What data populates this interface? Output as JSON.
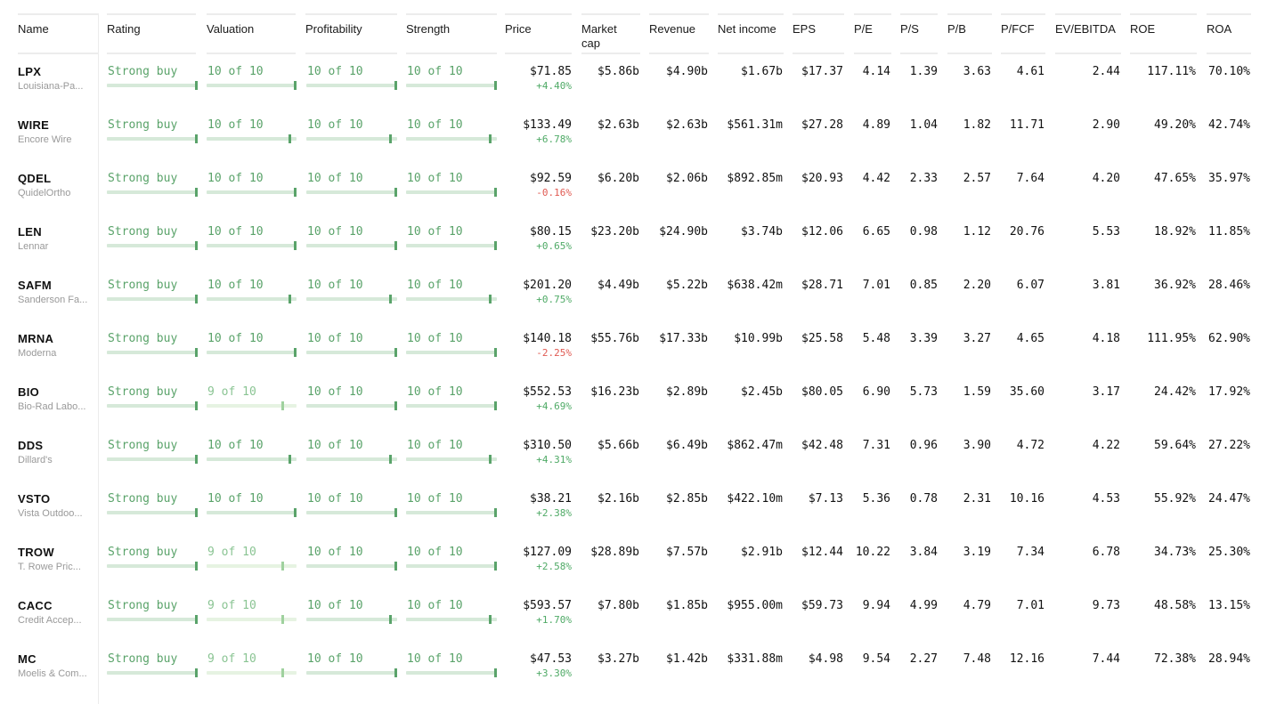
{
  "columns": {
    "name": "Name",
    "rating": "Rating",
    "valuation": "Valuation",
    "profitability": "Profitability",
    "strength": "Strength",
    "price": "Price",
    "mcap_line1": "Market",
    "mcap_line2": "cap",
    "revenue": "Revenue",
    "net_income": "Net income",
    "eps": "EPS",
    "pe": "P/E",
    "ps": "P/S",
    "pb": "P/B",
    "pfcf": "P/FCF",
    "ev_ebitda": "EV/EBITDA",
    "roe": "ROE",
    "roa": "ROA"
  },
  "colors": {
    "accent": "#5aa36a",
    "positive": "#4faa66",
    "negative": "#e05a52",
    "bar": "#d6e9d9"
  },
  "rows": [
    {
      "ticker": "LPX",
      "name": "Louisiana-Pa...",
      "rating": "Strong buy",
      "valuation": "10 of 10",
      "profitability": "10 of 10",
      "strength": "10 of 10",
      "price": "$71.85",
      "change": "+4.40%",
      "mcap": "$5.86b",
      "revenue": "$4.90b",
      "net_income": "$1.67b",
      "eps": "$17.37",
      "pe": "4.14",
      "ps": "1.39",
      "pb": "3.63",
      "pfcf": "4.61",
      "ev_ebitda": "2.44",
      "roe": "117.11%",
      "roa": "70.10%"
    },
    {
      "ticker": "WIRE",
      "name": "Encore Wire",
      "rating": "Strong buy",
      "valuation": "10 of 10",
      "profitability": "10 of 10",
      "strength": "10 of 10",
      "price": "$133.49",
      "change": "+6.78%",
      "mcap": "$2.63b",
      "revenue": "$2.63b",
      "net_income": "$561.31m",
      "eps": "$27.28",
      "pe": "4.89",
      "ps": "1.04",
      "pb": "1.82",
      "pfcf": "11.71",
      "ev_ebitda": "2.90",
      "roe": "49.20%",
      "roa": "42.74%"
    },
    {
      "ticker": "QDEL",
      "name": "QuidelOrtho",
      "rating": "Strong buy",
      "valuation": "10 of 10",
      "profitability": "10 of 10",
      "strength": "10 of 10",
      "price": "$92.59",
      "change": "-0.16%",
      "mcap": "$6.20b",
      "revenue": "$2.06b",
      "net_income": "$892.85m",
      "eps": "$20.93",
      "pe": "4.42",
      "ps": "2.33",
      "pb": "2.57",
      "pfcf": "7.64",
      "ev_ebitda": "4.20",
      "roe": "47.65%",
      "roa": "35.97%"
    },
    {
      "ticker": "LEN",
      "name": "Lennar",
      "rating": "Strong buy",
      "valuation": "10 of 10",
      "profitability": "10 of 10",
      "strength": "10 of 10",
      "price": "$80.15",
      "change": "+0.65%",
      "mcap": "$23.20b",
      "revenue": "$24.90b",
      "net_income": "$3.74b",
      "eps": "$12.06",
      "pe": "6.65",
      "ps": "0.98",
      "pb": "1.12",
      "pfcf": "20.76",
      "ev_ebitda": "5.53",
      "roe": "18.92%",
      "roa": "11.85%"
    },
    {
      "ticker": "SAFM",
      "name": "Sanderson Fa...",
      "rating": "Strong buy",
      "valuation": "10 of 10",
      "profitability": "10 of 10",
      "strength": "10 of 10",
      "price": "$201.20",
      "change": "+0.75%",
      "mcap": "$4.49b",
      "revenue": "$5.22b",
      "net_income": "$638.42m",
      "eps": "$28.71",
      "pe": "7.01",
      "ps": "0.85",
      "pb": "2.20",
      "pfcf": "6.07",
      "ev_ebitda": "3.81",
      "roe": "36.92%",
      "roa": "28.46%"
    },
    {
      "ticker": "MRNA",
      "name": "Moderna",
      "rating": "Strong buy",
      "valuation": "10 of 10",
      "profitability": "10 of 10",
      "strength": "10 of 10",
      "price": "$140.18",
      "change": "-2.25%",
      "mcap": "$55.76b",
      "revenue": "$17.33b",
      "net_income": "$10.99b",
      "eps": "$25.58",
      "pe": "5.48",
      "ps": "3.39",
      "pb": "3.27",
      "pfcf": "4.65",
      "ev_ebitda": "4.18",
      "roe": "111.95%",
      "roa": "62.90%"
    },
    {
      "ticker": "BIO",
      "name": "Bio-Rad Labo...",
      "rating": "Strong buy",
      "valuation": "9 of 10",
      "profitability": "10 of 10",
      "strength": "10 of 10",
      "price": "$552.53",
      "change": "+4.69%",
      "mcap": "$16.23b",
      "revenue": "$2.89b",
      "net_income": "$2.45b",
      "eps": "$80.05",
      "pe": "6.90",
      "ps": "5.73",
      "pb": "1.59",
      "pfcf": "35.60",
      "ev_ebitda": "3.17",
      "roe": "24.42%",
      "roa": "17.92%"
    },
    {
      "ticker": "DDS",
      "name": "Dillard's",
      "rating": "Strong buy",
      "valuation": "10 of 10",
      "profitability": "10 of 10",
      "strength": "10 of 10",
      "price": "$310.50",
      "change": "+4.31%",
      "mcap": "$5.66b",
      "revenue": "$6.49b",
      "net_income": "$862.47m",
      "eps": "$42.48",
      "pe": "7.31",
      "ps": "0.96",
      "pb": "3.90",
      "pfcf": "4.72",
      "ev_ebitda": "4.22",
      "roe": "59.64%",
      "roa": "27.22%"
    },
    {
      "ticker": "VSTO",
      "name": "Vista Outdoo...",
      "rating": "Strong buy",
      "valuation": "10 of 10",
      "profitability": "10 of 10",
      "strength": "10 of 10",
      "price": "$38.21",
      "change": "+2.38%",
      "mcap": "$2.16b",
      "revenue": "$2.85b",
      "net_income": "$422.10m",
      "eps": "$7.13",
      "pe": "5.36",
      "ps": "0.78",
      "pb": "2.31",
      "pfcf": "10.16",
      "ev_ebitda": "4.53",
      "roe": "55.92%",
      "roa": "24.47%"
    },
    {
      "ticker": "TROW",
      "name": "T. Rowe Pric...",
      "rating": "Strong buy",
      "valuation": "9 of 10",
      "profitability": "10 of 10",
      "strength": "10 of 10",
      "price": "$127.09",
      "change": "+2.58%",
      "mcap": "$28.89b",
      "revenue": "$7.57b",
      "net_income": "$2.91b",
      "eps": "$12.44",
      "pe": "10.22",
      "ps": "3.84",
      "pb": "3.19",
      "pfcf": "7.34",
      "ev_ebitda": "6.78",
      "roe": "34.73%",
      "roa": "25.30%"
    },
    {
      "ticker": "CACC",
      "name": "Credit Accep...",
      "rating": "Strong buy",
      "valuation": "9 of 10",
      "profitability": "10 of 10",
      "strength": "10 of 10",
      "price": "$593.57",
      "change": "+1.70%",
      "mcap": "$7.80b",
      "revenue": "$1.85b",
      "net_income": "$955.00m",
      "eps": "$59.73",
      "pe": "9.94",
      "ps": "4.99",
      "pb": "4.79",
      "pfcf": "7.01",
      "ev_ebitda": "9.73",
      "roe": "48.58%",
      "roa": "13.15%"
    },
    {
      "ticker": "MC",
      "name": "Moelis & Com...",
      "rating": "Strong buy",
      "valuation": "9 of 10",
      "profitability": "10 of 10",
      "strength": "10 of 10",
      "price": "$47.53",
      "change": "+3.30%",
      "mcap": "$3.27b",
      "revenue": "$1.42b",
      "net_income": "$331.88m",
      "eps": "$4.98",
      "pe": "9.54",
      "ps": "2.27",
      "pb": "7.48",
      "pfcf": "12.16",
      "ev_ebitda": "7.44",
      "roe": "72.38%",
      "roa": "28.94%"
    }
  ]
}
